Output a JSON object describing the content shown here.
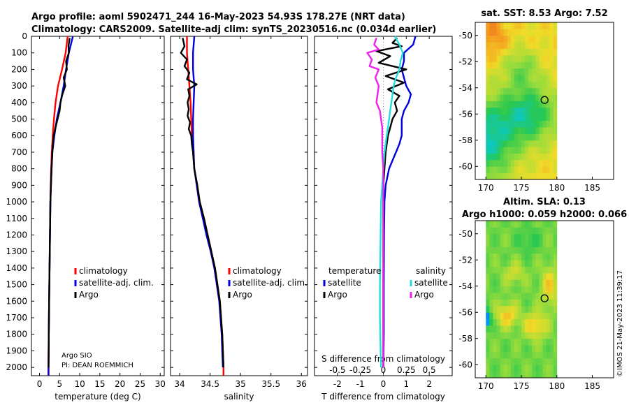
{
  "titles": {
    "line1": "Argo profile: aoml 5902471_244 16-May-2023 54.93S 178.27E (NRT data)",
    "line2": "Climatology: CARS2009. Satellite-adj clim: synTS_20230516.nc (0.034d earlier)"
  },
  "credit": {
    "line1": "Argo SIO",
    "line2": "PI: DEAN ROEMMICH"
  },
  "watermark": "©IMOS 21-May-2023 11:39:17",
  "colors": {
    "climatology": "#ff0000",
    "satellite": "#0000dd",
    "argo": "#000000",
    "sat_salinity": "#22dddd",
    "argo_salinity": "#ee22ee"
  },
  "chart_data": [
    {
      "id": "temperature",
      "type": "line",
      "xlabel": "temperature (deg C)",
      "ylabel": "",
      "xlim": [
        -2,
        31
      ],
      "ylim": [
        2050,
        0
      ],
      "xticks": [
        0,
        5,
        10,
        15,
        20,
        25,
        30
      ],
      "yticks": [
        0,
        100,
        200,
        300,
        400,
        500,
        600,
        700,
        800,
        900,
        1000,
        1100,
        1200,
        1300,
        1400,
        1500,
        1600,
        1700,
        1800,
        1900,
        2000
      ],
      "legend": [
        "climatology",
        "satellite-adj. clim.",
        "Argo"
      ],
      "series": [
        {
          "name": "climatology",
          "color_key": "climatology",
          "points": [
            [
              7.0,
              0
            ],
            [
              6.5,
              100
            ],
            [
              5.6,
              200
            ],
            [
              4.6,
              300
            ],
            [
              4.0,
              400
            ],
            [
              3.6,
              500
            ],
            [
              3.3,
              600
            ],
            [
              3.05,
              700
            ],
            [
              2.9,
              800
            ],
            [
              2.8,
              900
            ],
            [
              2.7,
              1000
            ],
            [
              2.6,
              1200
            ],
            [
              2.5,
              1400
            ],
            [
              2.4,
              1600
            ],
            [
              2.3,
              1800
            ],
            [
              2.2,
              2000
            ],
            [
              2.2,
              2050
            ]
          ]
        },
        {
          "name": "satellite-adj. clim.",
          "color_key": "satellite",
          "points": [
            [
              8.3,
              0
            ],
            [
              7.3,
              100
            ],
            [
              6.6,
              200
            ],
            [
              6.0,
              300
            ],
            [
              5.2,
              400
            ],
            [
              4.3,
              500
            ],
            [
              3.7,
              600
            ],
            [
              3.2,
              700
            ],
            [
              3.0,
              800
            ],
            [
              2.85,
              900
            ],
            [
              2.7,
              1000
            ],
            [
              2.6,
              1200
            ],
            [
              2.5,
              1400
            ],
            [
              2.4,
              1600
            ],
            [
              2.3,
              1800
            ],
            [
              2.25,
              2000
            ],
            [
              2.25,
              2050
            ]
          ]
        },
        {
          "name": "Argo",
          "color_key": "argo",
          "points": [
            [
              7.5,
              10
            ],
            [
              7.2,
              60
            ],
            [
              7.3,
              100
            ],
            [
              6.6,
              150
            ],
            [
              6.8,
              200
            ],
            [
              6.0,
              250
            ],
            [
              6.4,
              300
            ],
            [
              5.7,
              350
            ],
            [
              5.2,
              400
            ],
            [
              5.0,
              450
            ],
            [
              4.5,
              500
            ],
            [
              4.0,
              550
            ],
            [
              3.5,
              600
            ],
            [
              3.2,
              700
            ],
            [
              3.0,
              800
            ],
            [
              2.85,
              900
            ],
            [
              2.7,
              1000
            ],
            [
              2.6,
              1200
            ],
            [
              2.5,
              1400
            ],
            [
              2.4,
              1600
            ],
            [
              2.3,
              1800
            ],
            [
              2.25,
              2000
            ]
          ]
        }
      ]
    },
    {
      "id": "salinity",
      "type": "line",
      "xlabel": "salinity",
      "ylabel": "",
      "xlim": [
        33.85,
        36.1
      ],
      "ylim": [
        2050,
        0
      ],
      "xticks": [
        34,
        34.5,
        35,
        35.5,
        36
      ],
      "legend": [
        "climatology",
        "satellite-adj. clim.",
        "Argo"
      ],
      "series": [
        {
          "name": "climatology",
          "color_key": "climatology",
          "points": [
            [
              34.12,
              0
            ],
            [
              34.12,
              100
            ],
            [
              34.14,
              200
            ],
            [
              34.16,
              300
            ],
            [
              34.18,
              400
            ],
            [
              34.19,
              500
            ],
            [
              34.2,
              600
            ],
            [
              34.22,
              700
            ],
            [
              34.24,
              800
            ],
            [
              34.29,
              900
            ],
            [
              34.33,
              1000
            ],
            [
              34.4,
              1100
            ],
            [
              34.46,
              1200
            ],
            [
              34.52,
              1300
            ],
            [
              34.58,
              1400
            ],
            [
              34.62,
              1500
            ],
            [
              34.66,
              1600
            ],
            [
              34.68,
              1700
            ],
            [
              34.7,
              1800
            ],
            [
              34.71,
              1900
            ],
            [
              34.72,
              2000
            ],
            [
              34.72,
              2050
            ]
          ]
        },
        {
          "name": "satellite-adj. clim.",
          "color_key": "satellite",
          "points": [
            [
              34.24,
              0
            ],
            [
              34.22,
              100
            ],
            [
              34.22,
              200
            ],
            [
              34.24,
              300
            ],
            [
              34.23,
              400
            ],
            [
              34.22,
              500
            ],
            [
              34.22,
              600
            ],
            [
              34.23,
              700
            ],
            [
              34.24,
              800
            ],
            [
              34.28,
              900
            ],
            [
              34.32,
              1000
            ],
            [
              34.38,
              1100
            ],
            [
              34.44,
              1200
            ],
            [
              34.51,
              1300
            ],
            [
              34.57,
              1400
            ],
            [
              34.61,
              1500
            ],
            [
              34.65,
              1600
            ],
            [
              34.67,
              1700
            ],
            [
              34.69,
              1800
            ],
            [
              34.7,
              1900
            ],
            [
              34.71,
              2000
            ]
          ]
        },
        {
          "name": "Argo",
          "color_key": "argo",
          "points": [
            [
              34.05,
              10
            ],
            [
              34.08,
              60
            ],
            [
              34.02,
              100
            ],
            [
              34.12,
              140
            ],
            [
              34.08,
              180
            ],
            [
              34.16,
              220
            ],
            [
              34.12,
              260
            ],
            [
              34.28,
              290
            ],
            [
              34.14,
              320
            ],
            [
              34.16,
              360
            ],
            [
              34.13,
              400
            ],
            [
              34.15,
              440
            ],
            [
              34.13,
              480
            ],
            [
              34.17,
              520
            ],
            [
              34.15,
              560
            ],
            [
              34.19,
              600
            ],
            [
              34.2,
              650
            ],
            [
              34.22,
              700
            ],
            [
              34.24,
              800
            ],
            [
              34.29,
              900
            ],
            [
              34.33,
              1000
            ],
            [
              34.4,
              1100
            ],
            [
              34.46,
              1200
            ],
            [
              34.52,
              1300
            ],
            [
              34.58,
              1400
            ],
            [
              34.62,
              1500
            ],
            [
              34.66,
              1600
            ],
            [
              34.68,
              1700
            ],
            [
              34.7,
              1800
            ],
            [
              34.71,
              1900
            ],
            [
              34.72,
              2000
            ]
          ]
        }
      ]
    },
    {
      "id": "difference",
      "type": "line",
      "xlabel": "T difference from climatology",
      "xlabel_top": "S difference from climatology",
      "xlim": [
        -3,
        3
      ],
      "ylim": [
        2050,
        0
      ],
      "xticks": [
        -2,
        -1,
        0,
        1,
        2
      ],
      "xticklabels": [
        "-2",
        "-1",
        "0",
        "1",
        "2"
      ],
      "xticks_s": [
        -2,
        -1,
        0,
        1,
        2
      ],
      "xticklabels_s": [
        "-0.5",
        "-0.25",
        "0",
        "0.25",
        "0.5"
      ],
      "legend_left_title": "temperature",
      "legend_right_title": "salinity",
      "legend_left": [
        "satellite",
        "Argo"
      ],
      "legend_right": [
        "satellite",
        "Argo"
      ],
      "series": [
        {
          "name": "T satellite",
          "color_key": "satellite",
          "points": [
            [
              1.4,
              0
            ],
            [
              1.3,
              50
            ],
            [
              0.9,
              100
            ],
            [
              0.9,
              150
            ],
            [
              0.8,
              200
            ],
            [
              0.9,
              250
            ],
            [
              1.0,
              300
            ],
            [
              1.2,
              350
            ],
            [
              1.1,
              400
            ],
            [
              0.9,
              450
            ],
            [
              0.8,
              500
            ],
            [
              0.8,
              550
            ],
            [
              0.8,
              600
            ],
            [
              0.7,
              650
            ],
            [
              0.55,
              700
            ],
            [
              0.4,
              750
            ],
            [
              0.25,
              800
            ],
            [
              0.1,
              900
            ],
            [
              0.05,
              1000
            ],
            [
              0.03,
              1200
            ],
            [
              0.02,
              1500
            ],
            [
              0.02,
              1800
            ],
            [
              0.0,
              2000
            ]
          ]
        },
        {
          "name": "T Argo",
          "color_key": "argo",
          "points": [
            [
              0.6,
              10
            ],
            [
              0.4,
              40
            ],
            [
              0.8,
              60
            ],
            [
              -0.3,
              90
            ],
            [
              0.3,
              120
            ],
            [
              -0.2,
              160
            ],
            [
              1.0,
              200
            ],
            [
              0.1,
              240
            ],
            [
              0.9,
              280
            ],
            [
              0.2,
              320
            ],
            [
              0.7,
              360
            ],
            [
              0.5,
              400
            ],
            [
              0.6,
              450
            ],
            [
              0.4,
              500
            ],
            [
              0.3,
              550
            ],
            [
              0.2,
              600
            ],
            [
              0.1,
              700
            ],
            [
              0.05,
              800
            ],
            [
              0.0,
              900
            ],
            [
              0.0,
              1000
            ],
            [
              0.0,
              1300
            ],
            [
              0.0,
              1600
            ],
            [
              0.0,
              2000
            ]
          ]
        },
        {
          "name": "S satellite",
          "color_key": "sat_salinity",
          "points": [
            [
              0.5,
              0
            ],
            [
              0.7,
              50
            ],
            [
              0.85,
              100
            ],
            [
              0.75,
              150
            ],
            [
              0.7,
              200
            ],
            [
              0.55,
              250
            ],
            [
              0.45,
              300
            ],
            [
              0.4,
              350
            ],
            [
              0.35,
              400
            ],
            [
              0.25,
              500
            ],
            [
              0.15,
              600
            ],
            [
              0.05,
              700
            ],
            [
              0.0,
              800
            ],
            [
              -0.05,
              900
            ],
            [
              -0.1,
              1000
            ],
            [
              -0.12,
              1200
            ],
            [
              -0.15,
              1500
            ],
            [
              -0.15,
              1700
            ],
            [
              -0.12,
              1900
            ],
            [
              -0.1,
              2000
            ]
          ]
        },
        {
          "name": "S Argo",
          "color_key": "argo_salinity",
          "points": [
            [
              -0.3,
              10
            ],
            [
              -0.4,
              50
            ],
            [
              -0.2,
              80
            ],
            [
              -0.7,
              100
            ],
            [
              -0.5,
              140
            ],
            [
              -0.6,
              180
            ],
            [
              -0.2,
              200
            ],
            [
              -0.35,
              250
            ],
            [
              -0.2,
              300
            ],
            [
              -0.25,
              350
            ],
            [
              -0.3,
              400
            ],
            [
              -0.15,
              450
            ],
            [
              -0.1,
              500
            ],
            [
              -0.05,
              550
            ],
            [
              -0.05,
              600
            ],
            [
              -0.05,
              700
            ],
            [
              0.0,
              800
            ],
            [
              0.0,
              1000
            ],
            [
              0.0,
              1500
            ],
            [
              0.0,
              2000
            ]
          ]
        }
      ]
    },
    {
      "id": "sst_map",
      "type": "heatmap",
      "title": "sat. SST: 8.53 Argo: 7.52",
      "xlim": [
        168.5,
        188
      ],
      "ylim": [
        -61,
        -49
      ],
      "xticks": [
        170,
        175,
        180,
        185
      ],
      "yticks": [
        -50,
        -52,
        -54,
        -56,
        -58,
        -60
      ],
      "data_extent_lon": [
        170,
        180
      ],
      "marker": {
        "lon": 178.27,
        "lat": -54.93
      },
      "field_description": "warm (orange) north and northwest, green cold-water patch across centre, cyan/blue in southwest"
    },
    {
      "id": "sla_map",
      "type": "heatmap",
      "title": "Altim. SLA: 0.13",
      "subtitle": "Argo h1000: 0.059 h2000: 0.066",
      "xlim": [
        168.5,
        188
      ],
      "ylim": [
        -61,
        -49
      ],
      "xticks": [
        170,
        175,
        180,
        185
      ],
      "yticks": [
        -50,
        -52,
        -54,
        -56,
        -58,
        -60
      ],
      "data_extent_lon": [
        170,
        180
      ],
      "marker": {
        "lon": 178.27,
        "lat": -54.93
      },
      "field_description": "mostly green/yellow with orange eddies between 54S and 58S and a blue patch at western edge"
    }
  ]
}
